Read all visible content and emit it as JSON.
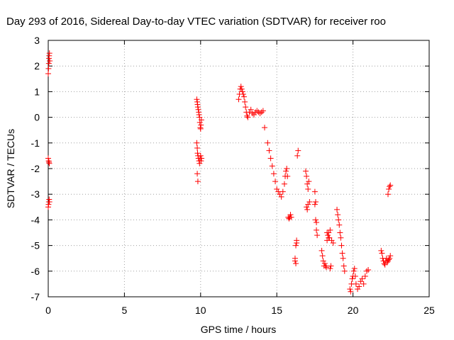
{
  "chart_data": {
    "type": "scatter",
    "title": "Day 293 of 2016, Sidereal Day-to-day VTEC variation (SDTVAR) for receiver roo",
    "xlabel": "GPS time / hours",
    "ylabel": "SDTVAR / TECUs",
    "xlim": [
      0,
      25
    ],
    "ylim": [
      -7,
      3
    ],
    "xticks": [
      0,
      5,
      10,
      15,
      20,
      25
    ],
    "yticks": [
      -7,
      -6,
      -5,
      -4,
      -3,
      -2,
      -1,
      0,
      1,
      2,
      3
    ],
    "grid": true,
    "marker": "+",
    "color": "#ff0000",
    "x": [
      0.0,
      0.02,
      0.04,
      0.05,
      0.06,
      0.08,
      0.1,
      0.0,
      0.03,
      0.05,
      0.07,
      0.0,
      0.02,
      0.04,
      0.06,
      0.08,
      9.75,
      9.78,
      9.8,
      9.82,
      9.85,
      9.88,
      9.9,
      9.93,
      9.95,
      9.98,
      10.0,
      10.02,
      10.05,
      9.75,
      9.78,
      9.8,
      9.83,
      9.86,
      9.9,
      9.93,
      9.96,
      10.0,
      10.03,
      10.06,
      9.78,
      9.82,
      12.5,
      12.55,
      12.6,
      12.65,
      12.7,
      12.75,
      12.8,
      12.85,
      12.9,
      12.95,
      13.0,
      13.05,
      13.1,
      13.2,
      13.3,
      13.4,
      13.5,
      13.6,
      13.7,
      13.8,
      13.9,
      14.0,
      14.1,
      14.2,
      14.4,
      14.5,
      14.6,
      14.7,
      14.8,
      14.9,
      15.0,
      15.1,
      15.2,
      15.3,
      15.4,
      15.5,
      15.55,
      15.6,
      15.65,
      15.7,
      15.75,
      15.8,
      15.85,
      15.9,
      15.95,
      16.2,
      16.25,
      16.3,
      16.35,
      16.4,
      16.2,
      16.25,
      16.3,
      16.9,
      16.95,
      17.0,
      17.05,
      17.1,
      17.15,
      16.95,
      17.0,
      17.05,
      17.5,
      17.55,
      17.6,
      17.65,
      17.5,
      17.55,
      17.6,
      17.95,
      18.0,
      18.05,
      18.1,
      18.15,
      18.2,
      18.25,
      18.3,
      18.35,
      18.4,
      18.45,
      18.5,
      18.55,
      18.6,
      18.3,
      18.4,
      18.5,
      18.7,
      18.95,
      19.0,
      19.05,
      19.1,
      19.15,
      19.2,
      19.25,
      19.3,
      19.35,
      19.4,
      19.45,
      19.8,
      19.85,
      19.9,
      19.95,
      20.0,
      20.05,
      20.1,
      20.15,
      20.2,
      20.3,
      20.4,
      20.5,
      20.6,
      20.7,
      20.8,
      20.9,
      21.0,
      21.85,
      21.9,
      21.95,
      22.0,
      22.05,
      22.1,
      22.15,
      22.2,
      22.25,
      22.3,
      22.35,
      22.4,
      22.45,
      22.3,
      22.35,
      22.4,
      22.45
    ],
    "y": [
      1.7,
      1.9,
      2.1,
      2.3,
      2.4,
      2.5,
      2.2,
      -1.6,
      -1.7,
      -1.75,
      -1.8,
      -3.5,
      -3.4,
      -3.3,
      -3.2,
      -3.3,
      0.7,
      0.6,
      0.5,
      0.4,
      0.3,
      0.2,
      0.1,
      0.0,
      -0.2,
      -0.4,
      -0.45,
      -0.3,
      -0.1,
      -1.0,
      -1.2,
      -1.4,
      -1.5,
      -1.6,
      -1.7,
      -1.8,
      -1.6,
      -1.5,
      -1.7,
      -1.6,
      -2.2,
      -2.5,
      0.7,
      0.9,
      1.1,
      1.2,
      1.1,
      1.0,
      0.9,
      0.8,
      0.6,
      0.4,
      0.2,
      0.05,
      0.0,
      0.2,
      0.3,
      0.15,
      0.1,
      0.2,
      0.25,
      0.2,
      0.15,
      0.2,
      0.25,
      -0.4,
      -1.0,
      -1.3,
      -1.6,
      -1.9,
      -2.2,
      -2.5,
      -2.8,
      -2.9,
      -3.0,
      -3.1,
      -2.9,
      -2.6,
      -2.3,
      -2.1,
      -2.0,
      -2.3,
      -3.9,
      -3.95,
      -3.9,
      -3.8,
      -3.9,
      -5.6,
      -5.0,
      -4.8,
      -1.5,
      -1.3,
      -5.5,
      -5.7,
      -4.9,
      -2.1,
      -2.3,
      -2.6,
      -2.8,
      -2.5,
      -3.3,
      -3.5,
      -3.6,
      -3.4,
      -2.9,
      -3.3,
      -4.1,
      -4.6,
      -3.4,
      -4.0,
      -4.4,
      -5.2,
      -5.4,
      -5.6,
      -5.8,
      -5.7,
      -5.8,
      -5.85,
      -4.8,
      -4.6,
      -4.5,
      -4.7,
      -5.9,
      -5.8,
      -4.8,
      -4.5,
      -4.7,
      -4.4,
      -4.9,
      -3.6,
      -3.8,
      -4.0,
      -4.2,
      -4.5,
      -4.7,
      -5.0,
      -5.3,
      -5.5,
      -5.8,
      -6.0,
      -6.7,
      -6.8,
      -6.5,
      -6.3,
      -6.2,
      -6.0,
      -5.9,
      -6.2,
      -6.5,
      -6.7,
      -6.6,
      -6.4,
      -6.3,
      -6.5,
      -6.2,
      -6.0,
      -5.95,
      -5.2,
      -5.3,
      -5.5,
      -5.6,
      -5.7,
      -5.75,
      -5.6,
      -5.5,
      -5.65,
      -5.6,
      -5.55,
      -5.5,
      -5.4,
      -3.0,
      -2.8,
      -2.7,
      -2.65
    ]
  }
}
